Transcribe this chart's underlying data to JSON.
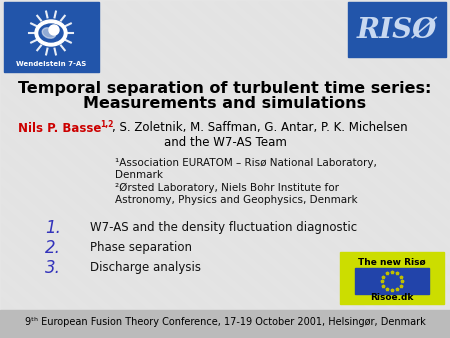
{
  "bg_color": "#d8d8d8",
  "slide_color": "#e8e8e8",
  "stripe_color": "#d0d0d0",
  "title_line1": "Temporal separation of turbulent time series:",
  "title_line2": "Measurements and simulations",
  "title_color": "#000000",
  "title_fontsize": 11.5,
  "author_name": "Nils P. Basse",
  "author_superscript": "1,2",
  "author_rest": ", S. Zoletnik, M. Saffman, G. Antar, P. K. Michelsen",
  "author_line2": "and the W7-AS Team",
  "author_name_color": "#cc0000",
  "author_rest_color": "#000000",
  "author_fontsize": 8.5,
  "affil1a": "¹Association EURATOM – Risø National Laboratory,",
  "affil1b": "Denmark",
  "affil2a": "²Ørsted Laboratory, Niels Bohr Institute for",
  "affil2b": "Astronomy, Physics and Geophysics, Denmark",
  "affil_fontsize": 7.5,
  "items": [
    "W7-AS and the density fluctuation diagnostic",
    "Phase separation",
    "Discharge analysis"
  ],
  "items_color": "#111111",
  "items_numbers_color": "#3333bb",
  "items_number_fontsize": 12,
  "items_fontsize": 8.5,
  "footer": "9ᵗʰ European Fusion Theory Conference, 17-19 October 2001, Helsingør, Denmark",
  "footer_fontsize": 7,
  "footer_color": "#000000",
  "riso_box_color": "#2255aa",
  "riso_text": "RISØ",
  "riso_text_color": "#c8d8f0",
  "wendelstein_box_color": "#2255aa",
  "wendelstein_text": "Wendelstein 7-AS",
  "new_riso_box_color": "#ccdd00",
  "new_riso_text1": "The new Risø",
  "new_riso_text2": "Risoe.dk",
  "new_riso_inner_color": "#2244aa",
  "bottom_bar_color": "#bbbbbb"
}
